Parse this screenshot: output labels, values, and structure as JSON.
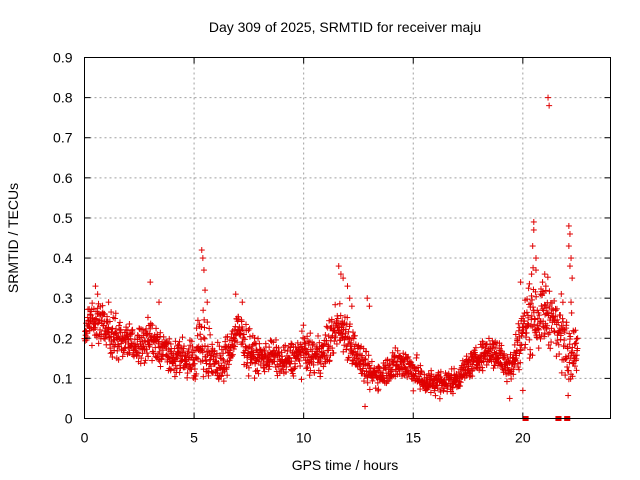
{
  "chart_data": {
    "type": "scatter",
    "title": "Day 309 of 2025, SRMTID for receiver maju",
    "xlabel": "GPS time / hours",
    "ylabel": "SRMTID / TECUs",
    "xlim": [
      0,
      24
    ],
    "ylim": [
      0,
      0.9
    ],
    "xticks": [
      0,
      5,
      10,
      15,
      20
    ],
    "xtick_labels": [
      "0",
      "5",
      "10",
      "15",
      "20"
    ],
    "yticks": [
      0,
      0.1,
      0.2,
      0.3,
      0.4,
      0.5,
      0.6,
      0.7,
      0.8,
      0.9
    ],
    "ytick_labels": [
      "0",
      "0.1",
      "0.2",
      "0.3",
      "0.4",
      "0.5",
      "0.6",
      "0.7",
      "0.8",
      "0.9"
    ],
    "grid": true,
    "marker": "plus",
    "color": "#e00000",
    "trend": {
      "x": [
        0,
        0.3,
        0.6,
        1.0,
        1.5,
        2.0,
        2.5,
        3.0,
        3.5,
        4.0,
        4.5,
        5.0,
        5.4,
        5.8,
        6.3,
        7.0,
        7.5,
        8.0,
        8.5,
        9.0,
        9.5,
        10.0,
        10.5,
        11.0,
        11.5,
        12.0,
        12.5,
        13.0,
        13.5,
        14.0,
        14.5,
        15.0,
        15.5,
        16.0,
        16.5,
        17.0,
        17.5,
        18.0,
        18.5,
        19.0,
        19.5,
        20.0,
        20.4,
        20.8,
        21.2,
        21.6,
        22.0,
        22.3,
        22.5
      ],
      "y": [
        0.2,
        0.25,
        0.24,
        0.22,
        0.2,
        0.19,
        0.18,
        0.2,
        0.17,
        0.15,
        0.15,
        0.15,
        0.2,
        0.14,
        0.13,
        0.22,
        0.17,
        0.15,
        0.16,
        0.14,
        0.15,
        0.17,
        0.15,
        0.17,
        0.23,
        0.21,
        0.15,
        0.11,
        0.11,
        0.13,
        0.14,
        0.12,
        0.09,
        0.09,
        0.09,
        0.1,
        0.13,
        0.15,
        0.17,
        0.15,
        0.13,
        0.22,
        0.27,
        0.25,
        0.27,
        0.22,
        0.2,
        0.17,
        0.16
      ],
      "spread": [
        0.04,
        0.05,
        0.05,
        0.05,
        0.05,
        0.04,
        0.05,
        0.05,
        0.05,
        0.04,
        0.04,
        0.05,
        0.09,
        0.05,
        0.05,
        0.05,
        0.05,
        0.04,
        0.04,
        0.04,
        0.04,
        0.05,
        0.04,
        0.05,
        0.06,
        0.06,
        0.04,
        0.04,
        0.03,
        0.04,
        0.04,
        0.04,
        0.03,
        0.03,
        0.03,
        0.03,
        0.03,
        0.03,
        0.04,
        0.04,
        0.04,
        0.07,
        0.1,
        0.07,
        0.08,
        0.06,
        0.12,
        0.06,
        0.03
      ]
    },
    "outliers": [
      {
        "x": 0.5,
        "y": 0.33
      },
      {
        "x": 0.6,
        "y": 0.31
      },
      {
        "x": 1.1,
        "y": 0.29
      },
      {
        "x": 3.0,
        "y": 0.34
      },
      {
        "x": 3.4,
        "y": 0.29
      },
      {
        "x": 5.35,
        "y": 0.42
      },
      {
        "x": 5.4,
        "y": 0.4
      },
      {
        "x": 5.45,
        "y": 0.37
      },
      {
        "x": 5.5,
        "y": 0.32
      },
      {
        "x": 5.6,
        "y": 0.29
      },
      {
        "x": 6.9,
        "y": 0.31
      },
      {
        "x": 7.2,
        "y": 0.29
      },
      {
        "x": 11.6,
        "y": 0.38
      },
      {
        "x": 11.7,
        "y": 0.36
      },
      {
        "x": 11.8,
        "y": 0.35
      },
      {
        "x": 12.0,
        "y": 0.33
      },
      {
        "x": 12.1,
        "y": 0.3
      },
      {
        "x": 12.2,
        "y": 0.28
      },
      {
        "x": 12.9,
        "y": 0.3
      },
      {
        "x": 13.0,
        "y": 0.28
      },
      {
        "x": 12.8,
        "y": 0.03
      },
      {
        "x": 19.4,
        "y": 0.05
      },
      {
        "x": 20.0,
        "y": 0.07
      },
      {
        "x": 19.9,
        "y": 0.34
      },
      {
        "x": 20.5,
        "y": 0.49
      },
      {
        "x": 20.5,
        "y": 0.47
      },
      {
        "x": 20.45,
        "y": 0.43
      },
      {
        "x": 20.6,
        "y": 0.4
      },
      {
        "x": 20.6,
        "y": 0.37
      },
      {
        "x": 20.4,
        "y": 0.36
      },
      {
        "x": 20.9,
        "y": 0.34
      },
      {
        "x": 21.0,
        "y": 0.36
      },
      {
        "x": 21.05,
        "y": 0.33
      },
      {
        "x": 21.15,
        "y": 0.8
      },
      {
        "x": 21.2,
        "y": 0.78
      },
      {
        "x": 22.1,
        "y": 0.48
      },
      {
        "x": 22.15,
        "y": 0.46
      },
      {
        "x": 22.1,
        "y": 0.43
      },
      {
        "x": 22.2,
        "y": 0.4
      },
      {
        "x": 22.15,
        "y": 0.38
      },
      {
        "x": 22.25,
        "y": 0.35
      },
      {
        "x": 22.2,
        "y": 0.29
      },
      {
        "x": 22.4,
        "y": 0.22
      },
      {
        "x": 22.5,
        "y": 0.2
      },
      {
        "x": 22.45,
        "y": 0.12
      }
    ],
    "zero_points": [
      {
        "x": 20.1,
        "y": 0
      },
      {
        "x": 20.15,
        "y": 0
      },
      {
        "x": 21.6,
        "y": 0
      },
      {
        "x": 21.65,
        "y": 0
      },
      {
        "x": 22.0,
        "y": 0
      },
      {
        "x": 22.05,
        "y": 0
      }
    ]
  }
}
